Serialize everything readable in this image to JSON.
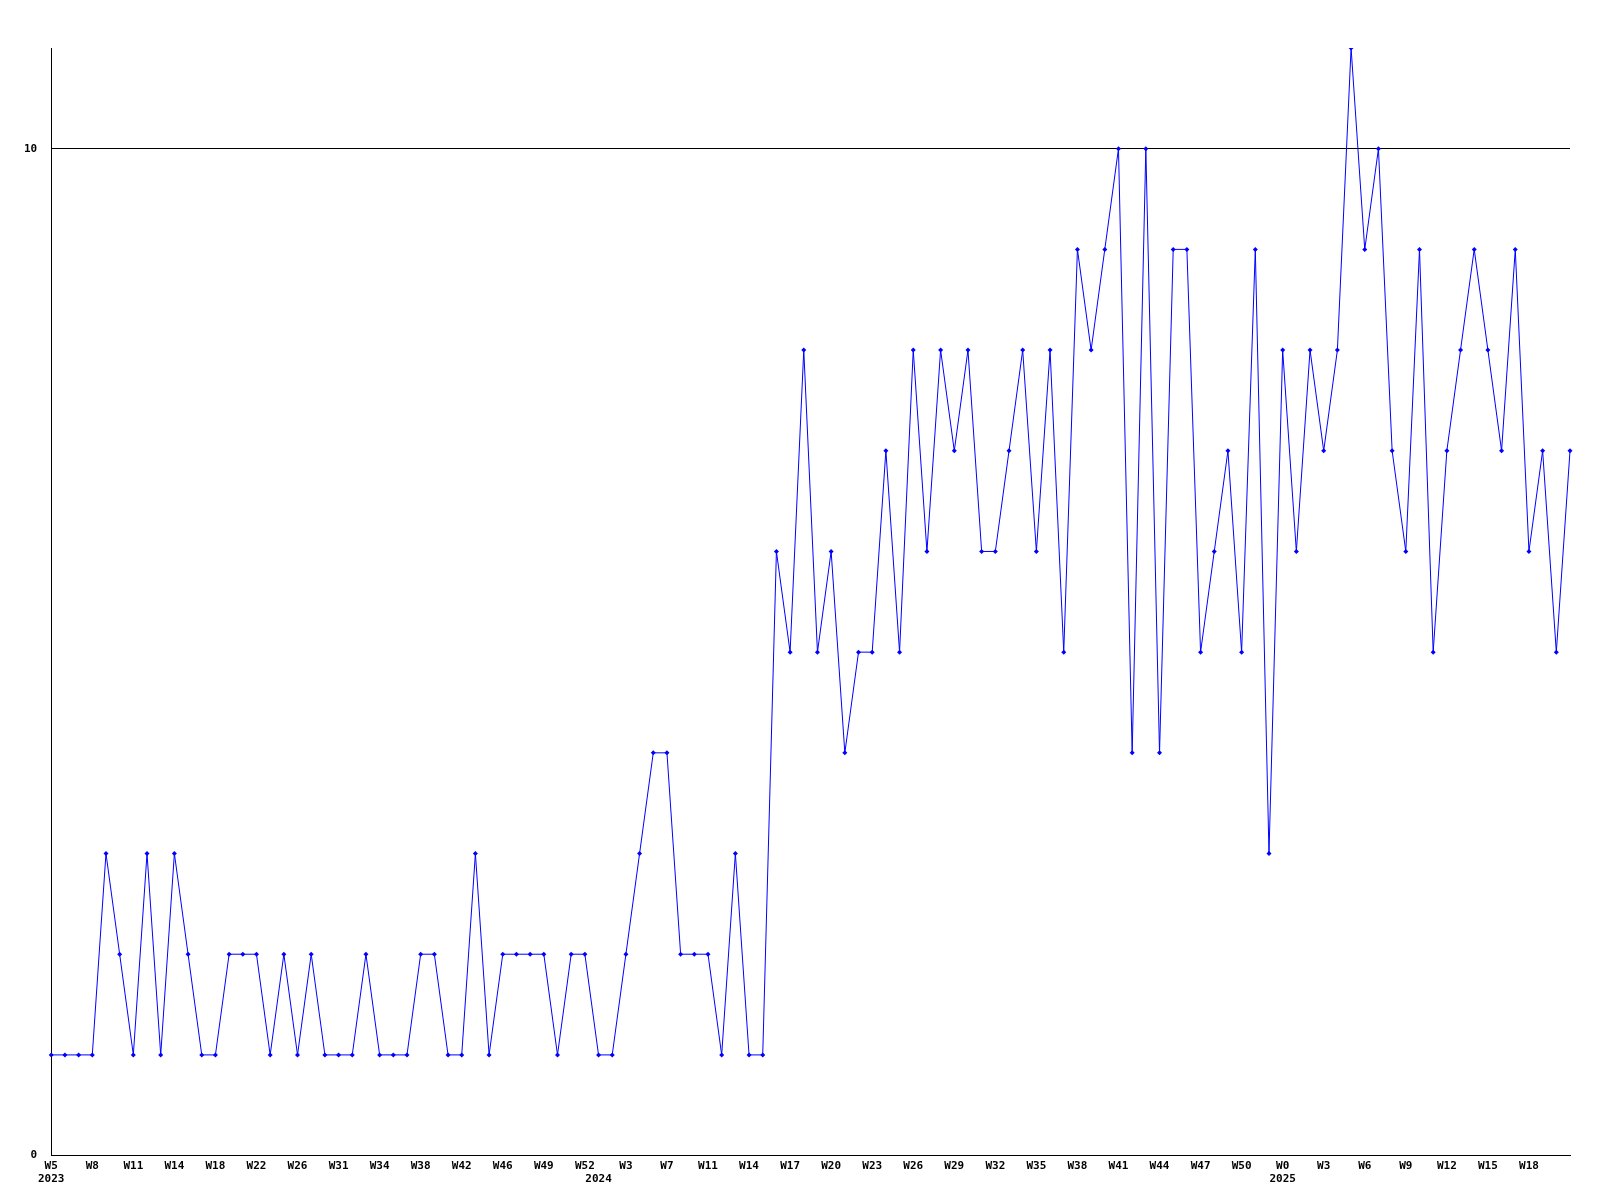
{
  "chart_data": {
    "type": "line",
    "categories": [
      "W5\n2023",
      null,
      null,
      "W8",
      null,
      null,
      "W11",
      null,
      null,
      "W14",
      null,
      null,
      "W18",
      null,
      null,
      "W22",
      null,
      null,
      "W26",
      null,
      null,
      "W31",
      null,
      null,
      "W34",
      null,
      null,
      "W38",
      null,
      null,
      "W42",
      null,
      null,
      "W46",
      null,
      null,
      "W49",
      null,
      null,
      "W52",
      "\n2024",
      null,
      "W3",
      null,
      null,
      "W7",
      null,
      null,
      "W11",
      null,
      null,
      "W14",
      null,
      null,
      "W17",
      null,
      null,
      "W20",
      null,
      null,
      "W23",
      null,
      null,
      "W26",
      null,
      null,
      "W29",
      null,
      null,
      "W32",
      null,
      null,
      "W35",
      null,
      null,
      "W38",
      null,
      null,
      "W41",
      null,
      null,
      "W44",
      null,
      null,
      "W47",
      null,
      null,
      "W50",
      null,
      null,
      "W0\n2025",
      null,
      null,
      "W3",
      null,
      null,
      "W6",
      null,
      null,
      "W9",
      null,
      null,
      "W12",
      null,
      null,
      "W15",
      null,
      null,
      "W18",
      null,
      null,
      null
    ],
    "series": [
      {
        "color": "#0000ff",
        "values": [
          1,
          1,
          1,
          1,
          3,
          2,
          1,
          3,
          1,
          3,
          2,
          1,
          1,
          2,
          2,
          2,
          1,
          2,
          1,
          2,
          1,
          1,
          1,
          2,
          1,
          1,
          1,
          2,
          2,
          1,
          1,
          3,
          1,
          2,
          2,
          2,
          2,
          1,
          2,
          2,
          1,
          1,
          2,
          3,
          4,
          4,
          2,
          2,
          2,
          1,
          3,
          1,
          1,
          6,
          5,
          8,
          5,
          6,
          4,
          5,
          5,
          7,
          5,
          8,
          6,
          8,
          7,
          8,
          6,
          6,
          7,
          8,
          6,
          8,
          5,
          9,
          8,
          9,
          10,
          4,
          10,
          4,
          9,
          9,
          5,
          6,
          7,
          5,
          9,
          3,
          8,
          6,
          8,
          7,
          8,
          11,
          9,
          10,
          7,
          6,
          9,
          5,
          7,
          8,
          9,
          8,
          7,
          9,
          6,
          7,
          5,
          7
        ]
      }
    ],
    "ylim": [
      0,
      11
    ],
    "yticks": [
      0,
      10
    ],
    "grid": "y",
    "marker": "diamond",
    "line_style": "solid"
  }
}
